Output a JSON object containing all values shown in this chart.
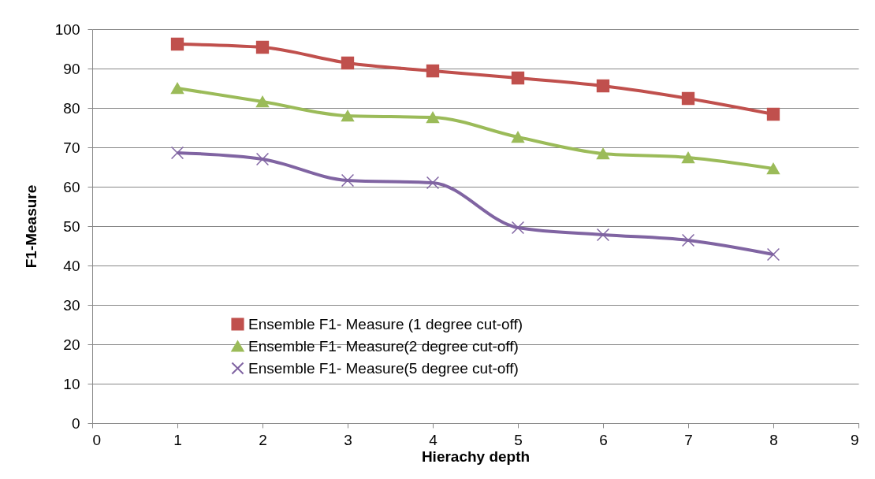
{
  "chart_data": {
    "type": "line",
    "xlabel": "Hierachy depth",
    "ylabel": "F1-Measure",
    "x": [
      1,
      2,
      3,
      4,
      5,
      6,
      7,
      8
    ],
    "series": [
      {
        "name": "Ensemble F1- Measure (1 degree cut-off)",
        "color": "#c0504d",
        "marker": "square",
        "values": [
          96.2,
          95.4,
          91.4,
          89.4,
          87.6,
          85.6,
          82.4,
          78.4
        ]
      },
      {
        "name": "Ensemble F1- Measure(2 degree cut-off)",
        "color": "#9bbb59",
        "marker": "triangle",
        "values": [
          85,
          81.6,
          78,
          77.6,
          72.6,
          68.4,
          67.4,
          64.6
        ]
      },
      {
        "name": "Ensemble F1- Measure(5 degree cut-off)",
        "color": "#8064a2",
        "marker": "cross",
        "values": [
          68.6,
          67,
          61.6,
          61,
          49.6,
          47.8,
          46.4,
          42.8
        ]
      }
    ],
    "xlim": [
      0,
      9
    ],
    "xticks": [
      0,
      1,
      2,
      3,
      4,
      5,
      6,
      7,
      8,
      9
    ],
    "ylim": [
      0,
      100
    ],
    "yticks": [
      0,
      10,
      20,
      30,
      40,
      50,
      60,
      70,
      80,
      90,
      100
    ],
    "grid": "y",
    "legend": "bottom left",
    "line_style": "solid"
  }
}
